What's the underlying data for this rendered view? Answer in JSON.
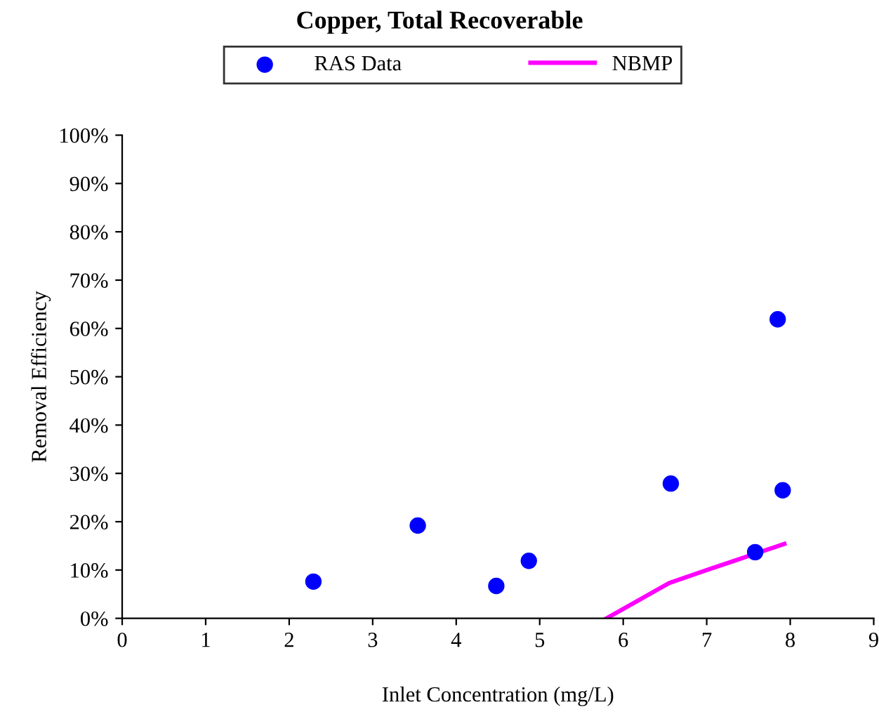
{
  "chart_data": {
    "type": "scatter",
    "title": "Copper, Total Recoverable",
    "xlabel": "Inlet Concentration (mg/L)",
    "ylabel": "Removal Efficiency",
    "series": [
      {
        "name": "RAS Data",
        "color": "#0000ff",
        "marker": "circle",
        "x": [
          2.29,
          3.54,
          4.48,
          4.87,
          6.57,
          7.58,
          7.85,
          7.91
        ],
        "values": [
          7.6,
          19.2,
          6.7,
          11.9,
          27.9,
          13.7,
          61.9,
          26.5
        ]
      },
      {
        "name": "NBMP",
        "type": "line",
        "color": "#ff00ff",
        "marker": "none",
        "line_style": "solid",
        "x": [
          5.8,
          6.55,
          7.0,
          7.93
        ],
        "values": [
          0,
          7.3,
          10,
          15.4
        ]
      }
    ],
    "xlim": [
      0,
      9
    ],
    "xticks": [
      0,
      1,
      2,
      3,
      4,
      5,
      6,
      7,
      8,
      9
    ],
    "ylim": [
      0,
      100
    ],
    "yticks": [
      {
        "value": 0,
        "label": "0%"
      },
      {
        "value": 10,
        "label": "10%"
      },
      {
        "value": 20,
        "label": "20%"
      },
      {
        "value": 30,
        "label": "30%"
      },
      {
        "value": 40,
        "label": "40%"
      },
      {
        "value": 50,
        "label": "50%"
      },
      {
        "value": 60,
        "label": "60%"
      },
      {
        "value": 70,
        "label": "70%"
      },
      {
        "value": 80,
        "label": "80%"
      },
      {
        "value": 90,
        "label": "90%"
      },
      {
        "value": 100,
        "label": "100%"
      }
    ],
    "grid": false,
    "legend": "top"
  }
}
